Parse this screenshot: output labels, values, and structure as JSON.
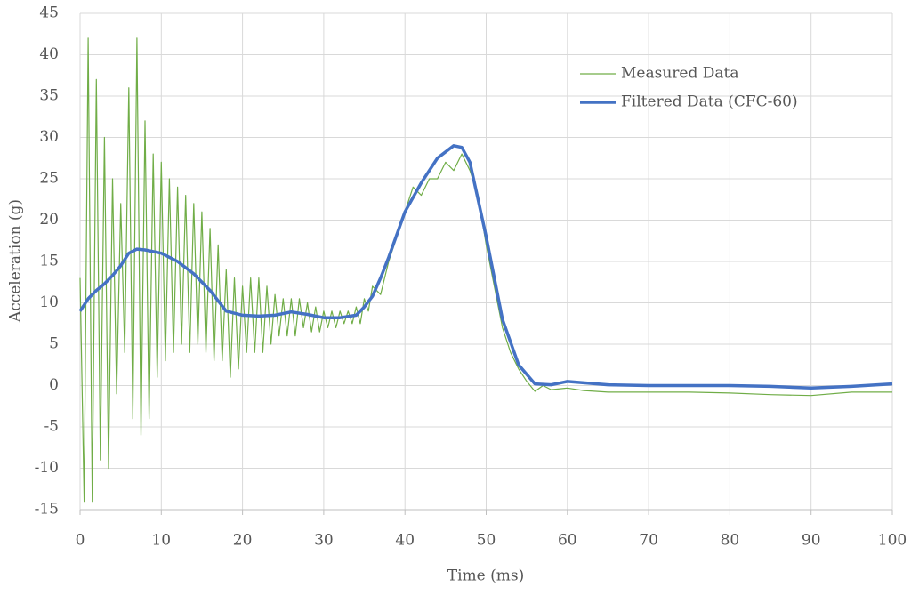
{
  "chart_data": {
    "type": "line",
    "xlabel": "Time (ms)",
    "ylabel": "Acceleration (g)",
    "xlim": [
      0,
      100
    ],
    "xticks": [
      0,
      10,
      20,
      30,
      40,
      50,
      60,
      70,
      80,
      90,
      100
    ],
    "ylim": [
      -15,
      45
    ],
    "yticks": [
      -15,
      -10,
      -5,
      0,
      5,
      10,
      15,
      20,
      25,
      30,
      35,
      40,
      45
    ],
    "grid": true,
    "legend": "upper right",
    "series": [
      {
        "name": "Measured Data",
        "color": "#70ad47",
        "width": 1.2,
        "x": [
          0,
          0.5,
          1,
          1.5,
          2,
          2.5,
          3,
          3.5,
          4,
          4.5,
          5,
          5.5,
          6,
          6.5,
          7,
          7.5,
          8,
          8.5,
          9,
          9.5,
          10,
          10.5,
          11,
          11.5,
          12,
          12.5,
          13,
          13.5,
          14,
          14.5,
          15,
          15.5,
          16,
          16.5,
          17,
          17.5,
          18,
          18.5,
          19,
          19.5,
          20,
          20.5,
          21,
          21.5,
          22,
          22.5,
          23,
          23.5,
          24,
          24.5,
          25,
          25.5,
          26,
          26.5,
          27,
          27.5,
          28,
          28.5,
          29,
          29.5,
          30,
          30.5,
          31,
          31.5,
          32,
          32.5,
          33,
          33.5,
          34,
          34.5,
          35,
          35.5,
          36,
          37,
          38,
          39,
          40,
          41,
          42,
          43,
          44,
          45,
          46,
          47,
          48,
          49,
          50,
          51,
          52,
          53,
          54,
          55,
          56,
          57,
          58,
          60,
          62,
          65,
          70,
          75,
          80,
          85,
          90,
          95,
          100
        ],
        "values": [
          13,
          -14,
          42,
          -14,
          37,
          -9,
          30,
          -10,
          25,
          -1,
          22,
          4,
          36,
          -4,
          42,
          -6,
          32,
          -4,
          28,
          1,
          27,
          3,
          25,
          4,
          24,
          5,
          23,
          4,
          22,
          5,
          21,
          4,
          19,
          3,
          17,
          3,
          14,
          1,
          13,
          2,
          12,
          4,
          13,
          4,
          13,
          4,
          12,
          5,
          11,
          6,
          10.5,
          6,
          10.5,
          6,
          10.5,
          7,
          10,
          6.5,
          9.5,
          6.5,
          9,
          7,
          9,
          7,
          9,
          7.5,
          9,
          7.5,
          9.5,
          7.5,
          10.5,
          9,
          12,
          11,
          15,
          18,
          21,
          24,
          23,
          25,
          25,
          27,
          26,
          28,
          26,
          23,
          17,
          12,
          7,
          4,
          2,
          0.5,
          -0.7,
          0,
          -0.5,
          -0.3,
          -0.6,
          -0.8,
          -0.8,
          -0.8,
          -0.9,
          -1.1,
          -1.2,
          -0.8,
          -0.8
        ]
      },
      {
        "name": "Filtered Data (CFC-60)",
        "color": "#4472c4",
        "width": 3.5,
        "x": [
          0,
          1,
          2,
          3,
          4,
          5,
          6,
          7,
          8,
          10,
          12,
          14,
          16,
          18,
          20,
          22,
          24,
          26,
          28,
          30,
          32,
          34,
          35,
          36,
          37,
          38,
          40,
          42,
          44,
          46,
          47,
          48,
          50,
          52,
          54,
          56,
          58,
          60,
          65,
          70,
          75,
          80,
          85,
          90,
          95,
          100
        ],
        "values": [
          9,
          10.5,
          11.5,
          12.3,
          13.3,
          14.5,
          16,
          16.5,
          16.4,
          16,
          15,
          13.5,
          11.5,
          9,
          8.5,
          8.4,
          8.5,
          8.9,
          8.6,
          8.2,
          8.2,
          8.5,
          9.5,
          10.8,
          13,
          15.5,
          21,
          24.5,
          27.5,
          29,
          28.8,
          27,
          18,
          8,
          2.5,
          0.2,
          0.1,
          0.5,
          0.1,
          0,
          0,
          0,
          -0.1,
          -0.3,
          -0.1,
          0.2
        ]
      }
    ]
  }
}
